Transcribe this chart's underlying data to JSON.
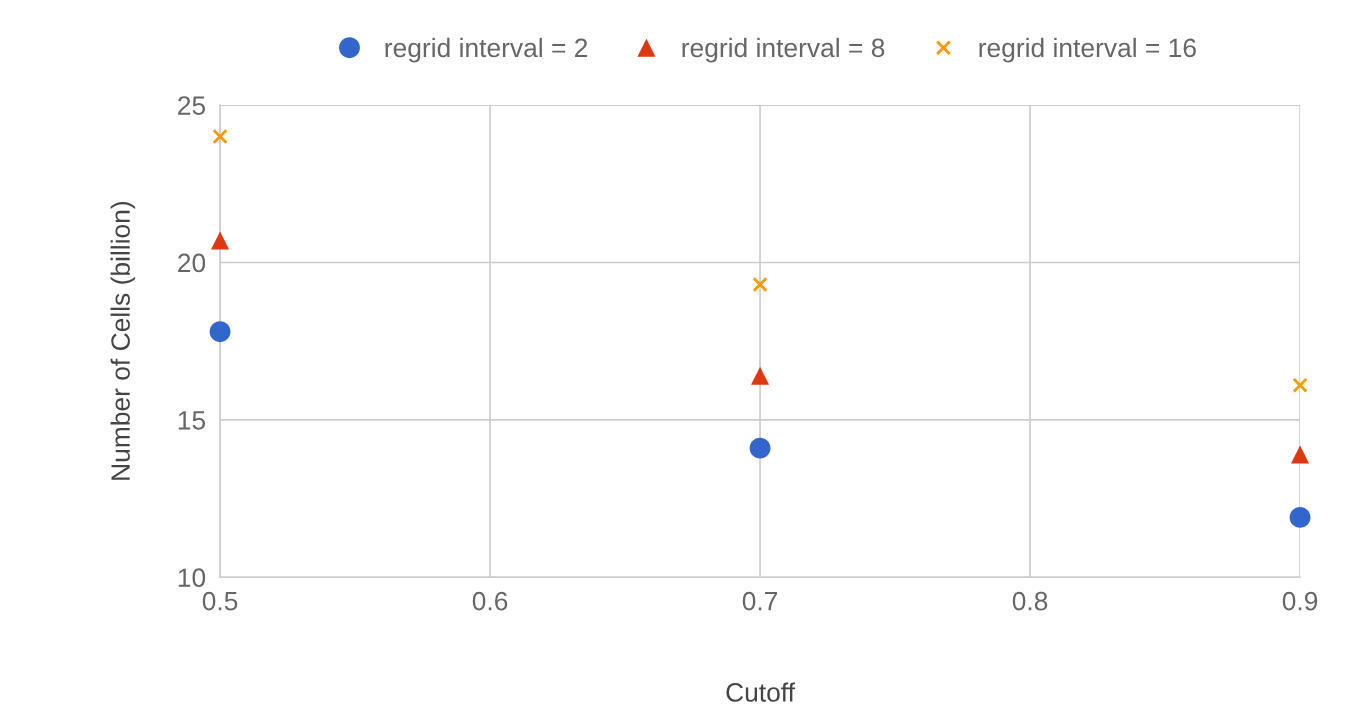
{
  "chart_data": {
    "type": "scatter",
    "xlabel": "Cutoff",
    "ylabel": "Number of Cells (billion)",
    "x": [
      0.5,
      0.7,
      0.9
    ],
    "series": [
      {
        "name": "regrid interval = 2",
        "color": "#3366cc",
        "marker": "circle",
        "values": [
          17.8,
          14.1,
          11.9
        ]
      },
      {
        "name": "regrid interval = 8",
        "color": "#dc3912",
        "marker": "triangle",
        "values": [
          20.7,
          16.4,
          13.9
        ]
      },
      {
        "name": "regrid interval = 16",
        "color": "#ff9900",
        "marker": "cross",
        "values": [
          24.0,
          19.3,
          16.1
        ]
      }
    ],
    "xlim": [
      0.5,
      0.9
    ],
    "xticks": [
      0.5,
      0.6,
      0.7,
      0.8,
      0.9
    ],
    "ylim": [
      10,
      25
    ],
    "yticks": [
      10,
      15,
      20,
      25
    ],
    "grid": true,
    "legend": "top"
  }
}
